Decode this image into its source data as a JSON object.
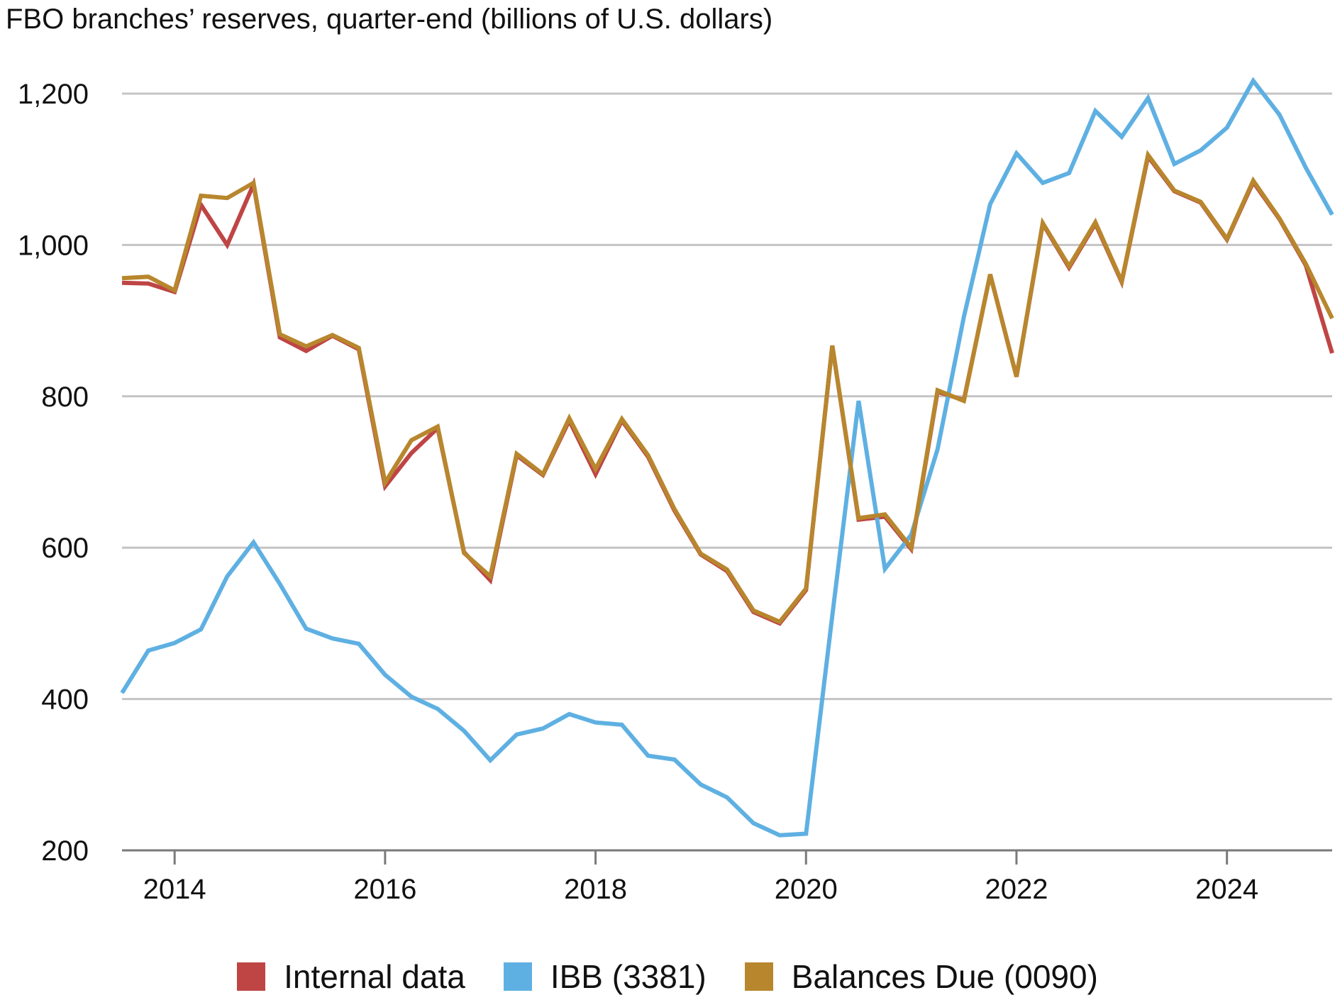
{
  "chart_data": {
    "type": "line",
    "title": "FBO branches’ reserves, quarter-end (billions of U.S. dollars)",
    "xlabel": "",
    "ylabel": "",
    "ylim": [
      200,
      1250
    ],
    "xlim": [
      "2013 Q3",
      "2025 Q1"
    ],
    "yticks": [
      200,
      400,
      600,
      800,
      1000,
      1200
    ],
    "ytick_labels": [
      "200",
      "400",
      "600",
      "800",
      "1,000",
      "1,200"
    ],
    "xtick_labels": [
      "2014",
      "2016",
      "2018",
      "2020",
      "2022",
      "2024"
    ],
    "grid": "horizontal",
    "legend_position": "bottom",
    "x": [
      "2013 Q3",
      "2013 Q4",
      "2014 Q1",
      "2014 Q2",
      "2014 Q3",
      "2014 Q4",
      "2015 Q1",
      "2015 Q2",
      "2015 Q3",
      "2015 Q4",
      "2016 Q1",
      "2016 Q2",
      "2016 Q3",
      "2016 Q4",
      "2017 Q1",
      "2017 Q2",
      "2017 Q3",
      "2017 Q4",
      "2018 Q1",
      "2018 Q2",
      "2018 Q3",
      "2018 Q4",
      "2019 Q1",
      "2019 Q2",
      "2019 Q3",
      "2019 Q4",
      "2020 Q1",
      "2020 Q2",
      "2020 Q3",
      "2020 Q4",
      "2021 Q1",
      "2021 Q2",
      "2021 Q3",
      "2021 Q4",
      "2022 Q1",
      "2022 Q2",
      "2022 Q3",
      "2022 Q4",
      "2023 Q1",
      "2023 Q2",
      "2023 Q3",
      "2023 Q4",
      "2024 Q1",
      "2024 Q2",
      "2024 Q3",
      "2024 Q4",
      "2025 Q1"
    ],
    "series": [
      {
        "name": "Internal data",
        "color": "#bf4545",
        "values": [
          950,
          949,
          938,
          1053,
          1000,
          1080,
          878,
          860,
          880,
          862,
          681,
          725,
          758,
          594,
          557,
          722,
          696,
          768,
          697,
          768,
          720,
          649,
          591,
          569,
          515,
          500,
          544,
          867,
          637,
          641,
          598,
          806,
          795,
          961,
          826,
          1028,
          970,
          1028,
          951,
          1117,
          1071,
          1056,
          1007,
          1083,
          1034,
          973,
          857
        ]
      },
      {
        "name": "IBB (3381)",
        "color": "#5fb0e2",
        "values": [
          408,
          464,
          474,
          492,
          562,
          607,
          552,
          493,
          480,
          473,
          432,
          403,
          387,
          358,
          319,
          353,
          361,
          380,
          369,
          366,
          325,
          320,
          287,
          270,
          236,
          220,
          222,
          510,
          794,
          572,
          617,
          730,
          905,
          1054,
          1121,
          1082,
          1095,
          1177,
          1143,
          1194,
          1107,
          1125,
          1155,
          1217,
          1172,
          1102,
          1040
        ]
      },
      {
        "name": "Balances Due (0090)",
        "color": "#b8862d",
        "values": [
          956,
          958,
          940,
          1065,
          1062,
          1082,
          882,
          866,
          881,
          864,
          686,
          742,
          760,
          593,
          562,
          724,
          697,
          771,
          704,
          770,
          722,
          651,
          592,
          571,
          517,
          502,
          546,
          867,
          639,
          644,
          600,
          808,
          794,
          961,
          826,
          1029,
          972,
          1030,
          952,
          1119,
          1072,
          1057,
          1008,
          1085,
          1035,
          975,
          903
        ]
      }
    ]
  }
}
